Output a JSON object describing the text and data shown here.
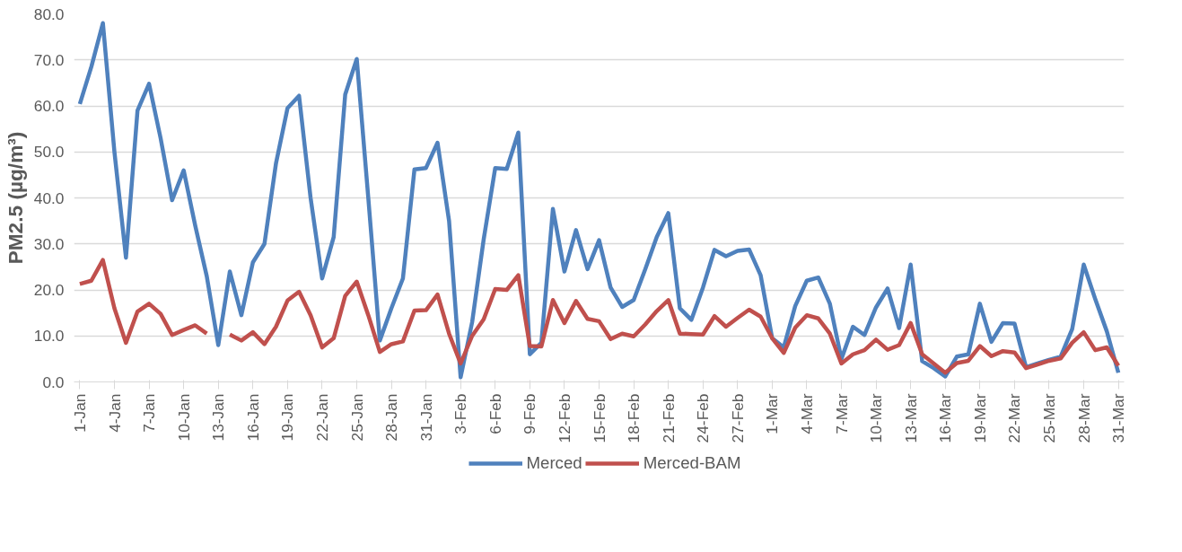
{
  "chart_data": {
    "type": "line",
    "ylabel": "PM2.5 (µg/m³)",
    "categories": [
      "1-Jan",
      null,
      null,
      "4-Jan",
      null,
      null,
      "7-Jan",
      null,
      null,
      "10-Jan",
      null,
      null,
      "13-Jan",
      null,
      null,
      "16-Jan",
      null,
      null,
      "19-Jan",
      null,
      null,
      "22-Jan",
      null,
      null,
      "25-Jan",
      null,
      null,
      "28-Jan",
      null,
      null,
      "31-Jan",
      null,
      null,
      "3-Feb",
      null,
      null,
      "6-Feb",
      null,
      null,
      "9-Feb",
      null,
      null,
      "12-Feb",
      null,
      null,
      "15-Feb",
      null,
      null,
      "18-Feb",
      null,
      null,
      "21-Feb",
      null,
      null,
      "24-Feb",
      null,
      null,
      "27-Feb",
      null,
      null,
      "1-Mar",
      null,
      null,
      "4-Mar",
      null,
      null,
      "7-Mar",
      null,
      null,
      "10-Mar",
      null,
      null,
      "13-Mar",
      null,
      null,
      "16-Mar",
      null,
      null,
      "19-Mar",
      null,
      null,
      "22-Mar",
      null,
      null,
      "25-Mar",
      null,
      null,
      "28-Mar",
      null,
      null,
      "31-Mar"
    ],
    "series": [
      {
        "name": "Merced",
        "color": "#4f81bd",
        "values": [
          60.4,
          68.5,
          78,
          50,
          27,
          59,
          64.8,
          53,
          39.5,
          46,
          34,
          23,
          8,
          24,
          14.5,
          26,
          30,
          47.5,
          59.5,
          62.2,
          40,
          22.5,
          31.5,
          62.5,
          70.2,
          40,
          9,
          16,
          22.5,
          46.2,
          46.5,
          52,
          35,
          1,
          13,
          31,
          46.5,
          46.3,
          54.2,
          6,
          8.5,
          37.6,
          24,
          33,
          24.5,
          30.8,
          20.5,
          16.3,
          17.8,
          24.5,
          31.5,
          36.7,
          16,
          13.5,
          20.5,
          28.7,
          27.3,
          28.5,
          28.8,
          23.2,
          9.5,
          7.5,
          16.5,
          22,
          22.7,
          17,
          5,
          12,
          10.2,
          16.2,
          20.3,
          11.7,
          25.5,
          4.5,
          3,
          1.2,
          5.5,
          6,
          17,
          8.7,
          12.8,
          12.7,
          3.2,
          4,
          4.8,
          5.5,
          11.5,
          25.5,
          18,
          11,
          2
        ]
      },
      {
        "name": "Merced-BAM",
        "color": "#c0504d",
        "values": [
          21.3,
          22,
          26.5,
          16,
          8.5,
          15.3,
          17,
          14.8,
          10.2,
          11.3,
          12.3,
          10.5,
          null,
          10.3,
          9,
          10.8,
          8.2,
          12,
          17.7,
          19.6,
          14.5,
          7.5,
          9.5,
          18.7,
          21.8,
          14.5,
          6.5,
          8.2,
          8.8,
          15.5,
          15.6,
          19,
          10.5,
          4,
          10,
          13.6,
          20.2,
          20,
          23.2,
          7.8,
          7.7,
          17.8,
          12.8,
          17.6,
          13.7,
          13.2,
          9.3,
          10.5,
          9.9,
          12.5,
          15.4,
          17.8,
          10.5,
          10.4,
          10.3,
          14.3,
          12,
          13.9,
          15.7,
          14.2,
          9.5,
          6.3,
          11.8,
          14.5,
          13.8,
          10.5,
          4,
          6,
          6.9,
          9.2,
          7,
          8,
          12.8,
          6,
          4,
          2,
          4.1,
          4.6,
          7.8,
          5.6,
          6.7,
          6.4,
          3,
          3.8,
          4.6,
          5.1,
          8.5,
          10.8,
          6.9,
          7.5,
          3.5
        ]
      }
    ],
    "ylim": [
      0,
      80
    ],
    "yticks": [
      {
        "value": 0,
        "label": "0.0"
      },
      {
        "value": 10,
        "label": "10.0"
      },
      {
        "value": 20,
        "label": "20.0"
      },
      {
        "value": 30,
        "label": "30.0"
      },
      {
        "value": 40,
        "label": "40.0"
      },
      {
        "value": 50,
        "label": "50.0"
      },
      {
        "value": 60,
        "label": "60.0"
      },
      {
        "value": 70,
        "label": "70.0"
      },
      {
        "value": 80,
        "label": "80.0"
      }
    ],
    "grid": "y",
    "legend": "bottom",
    "marker": "none",
    "line_style": "solid"
  }
}
